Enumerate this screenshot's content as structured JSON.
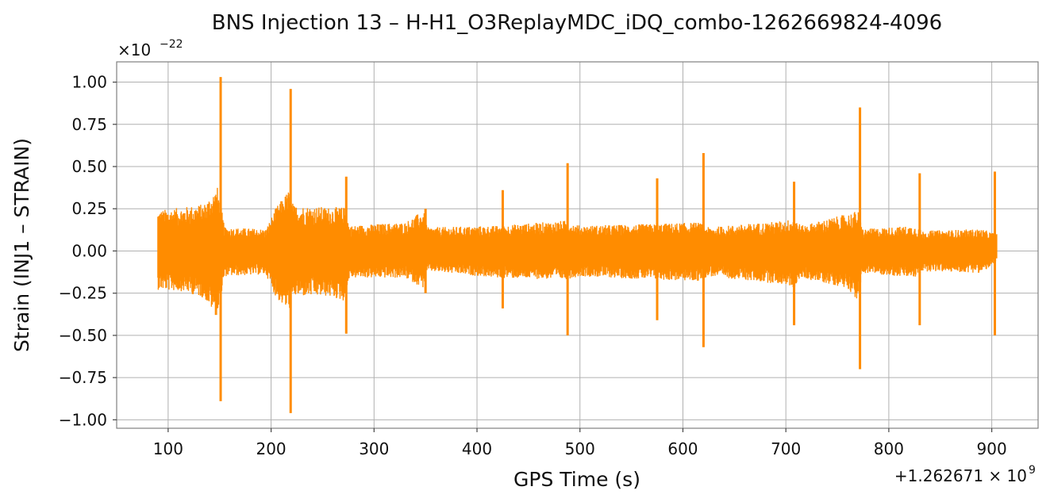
{
  "chart_data": {
    "type": "line",
    "title": "BNS Injection 13 – H-H1_O3ReplayMDC_iDQ_combo-1262669824-4096",
    "xlabel": "GPS Time (s)",
    "ylabel": "Strain (INJ1 – STRAIN)",
    "x_offset_label": "+1.262671 × 10",
    "x_offset_exponent": "9",
    "y_scale_label": "×10",
    "y_scale_exponent": "−22",
    "xlim": [
      50,
      945
    ],
    "ylim": [
      -1.05,
      1.12
    ],
    "x_ticks": [
      {
        "value": 100,
        "label": "100"
      },
      {
        "value": 200,
        "label": "200"
      },
      {
        "value": 300,
        "label": "300"
      },
      {
        "value": 400,
        "label": "400"
      },
      {
        "value": 500,
        "label": "500"
      },
      {
        "value": 600,
        "label": "600"
      },
      {
        "value": 700,
        "label": "700"
      },
      {
        "value": 800,
        "label": "800"
      },
      {
        "value": 900,
        "label": "900"
      }
    ],
    "y_ticks": [
      {
        "value": 1.0,
        "label": "1.00"
      },
      {
        "value": 0.75,
        "label": "0.75"
      },
      {
        "value": 0.5,
        "label": "0.50"
      },
      {
        "value": 0.25,
        "label": "0.25"
      },
      {
        "value": 0.0,
        "label": "0.00"
      },
      {
        "value": -0.25,
        "label": "−0.25"
      },
      {
        "value": -0.5,
        "label": "−0.50"
      },
      {
        "value": -0.75,
        "label": "−0.75"
      },
      {
        "value": -1.0,
        "label": "−1.00"
      }
    ],
    "grid": true,
    "series": [
      {
        "color": "#ff8c00",
        "x_range": [
          90,
          905
        ],
        "background_envelope": [
          {
            "x": 90,
            "upper": 0.24,
            "lower": -0.23
          },
          {
            "x": 115,
            "upper": 0.26,
            "lower": -0.24
          },
          {
            "x": 135,
            "upper": 0.28,
            "lower": -0.28
          },
          {
            "x": 148,
            "upper": 0.38,
            "lower": -0.4
          },
          {
            "x": 155,
            "upper": 0.14,
            "lower": -0.15
          },
          {
            "x": 195,
            "upper": 0.13,
            "lower": -0.14
          },
          {
            "x": 205,
            "upper": 0.26,
            "lower": -0.28
          },
          {
            "x": 217,
            "upper": 0.36,
            "lower": -0.36
          },
          {
            "x": 222,
            "upper": 0.27,
            "lower": -0.27
          },
          {
            "x": 255,
            "upper": 0.26,
            "lower": -0.27
          },
          {
            "x": 272,
            "upper": 0.26,
            "lower": -0.3
          },
          {
            "x": 276,
            "upper": 0.15,
            "lower": -0.16
          },
          {
            "x": 330,
            "upper": 0.17,
            "lower": -0.16
          },
          {
            "x": 348,
            "upper": 0.24,
            "lower": -0.22
          },
          {
            "x": 352,
            "upper": 0.14,
            "lower": -0.12
          },
          {
            "x": 420,
            "upper": 0.15,
            "lower": -0.16
          },
          {
            "x": 485,
            "upper": 0.18,
            "lower": -0.17
          },
          {
            "x": 500,
            "upper": 0.15,
            "lower": -0.15
          },
          {
            "x": 570,
            "upper": 0.16,
            "lower": -0.17
          },
          {
            "x": 615,
            "upper": 0.17,
            "lower": -0.18
          },
          {
            "x": 625,
            "upper": 0.14,
            "lower": -0.15
          },
          {
            "x": 700,
            "upper": 0.18,
            "lower": -0.2
          },
          {
            "x": 708,
            "upper": 0.2,
            "lower": -0.22
          },
          {
            "x": 715,
            "upper": 0.15,
            "lower": -0.16
          },
          {
            "x": 760,
            "upper": 0.22,
            "lower": -0.22
          },
          {
            "x": 770,
            "upper": 0.24,
            "lower": -0.3
          },
          {
            "x": 775,
            "upper": 0.13,
            "lower": -0.13
          },
          {
            "x": 825,
            "upper": 0.15,
            "lower": -0.16
          },
          {
            "x": 832,
            "upper": 0.12,
            "lower": -0.12
          },
          {
            "x": 890,
            "upper": 0.13,
            "lower": -0.13
          },
          {
            "x": 905,
            "upper": 0.1,
            "lower": -0.07
          }
        ],
        "glitches": [
          {
            "x": 151,
            "max": 1.03,
            "min": -0.89
          },
          {
            "x": 219,
            "max": 0.96,
            "min": -0.96
          },
          {
            "x": 273,
            "max": 0.44,
            "min": -0.49
          },
          {
            "x": 350,
            "max": 0.25,
            "min": -0.25
          },
          {
            "x": 425,
            "max": 0.36,
            "min": -0.34
          },
          {
            "x": 488,
            "max": 0.52,
            "min": -0.5
          },
          {
            "x": 575,
            "max": 0.43,
            "min": -0.41
          },
          {
            "x": 620,
            "max": 0.58,
            "min": -0.57
          },
          {
            "x": 708,
            "max": 0.41,
            "min": -0.44
          },
          {
            "x": 772,
            "max": 0.85,
            "min": -0.7
          },
          {
            "x": 830,
            "max": 0.46,
            "min": -0.44
          },
          {
            "x": 903,
            "max": 0.47,
            "min": -0.5
          }
        ]
      }
    ]
  }
}
